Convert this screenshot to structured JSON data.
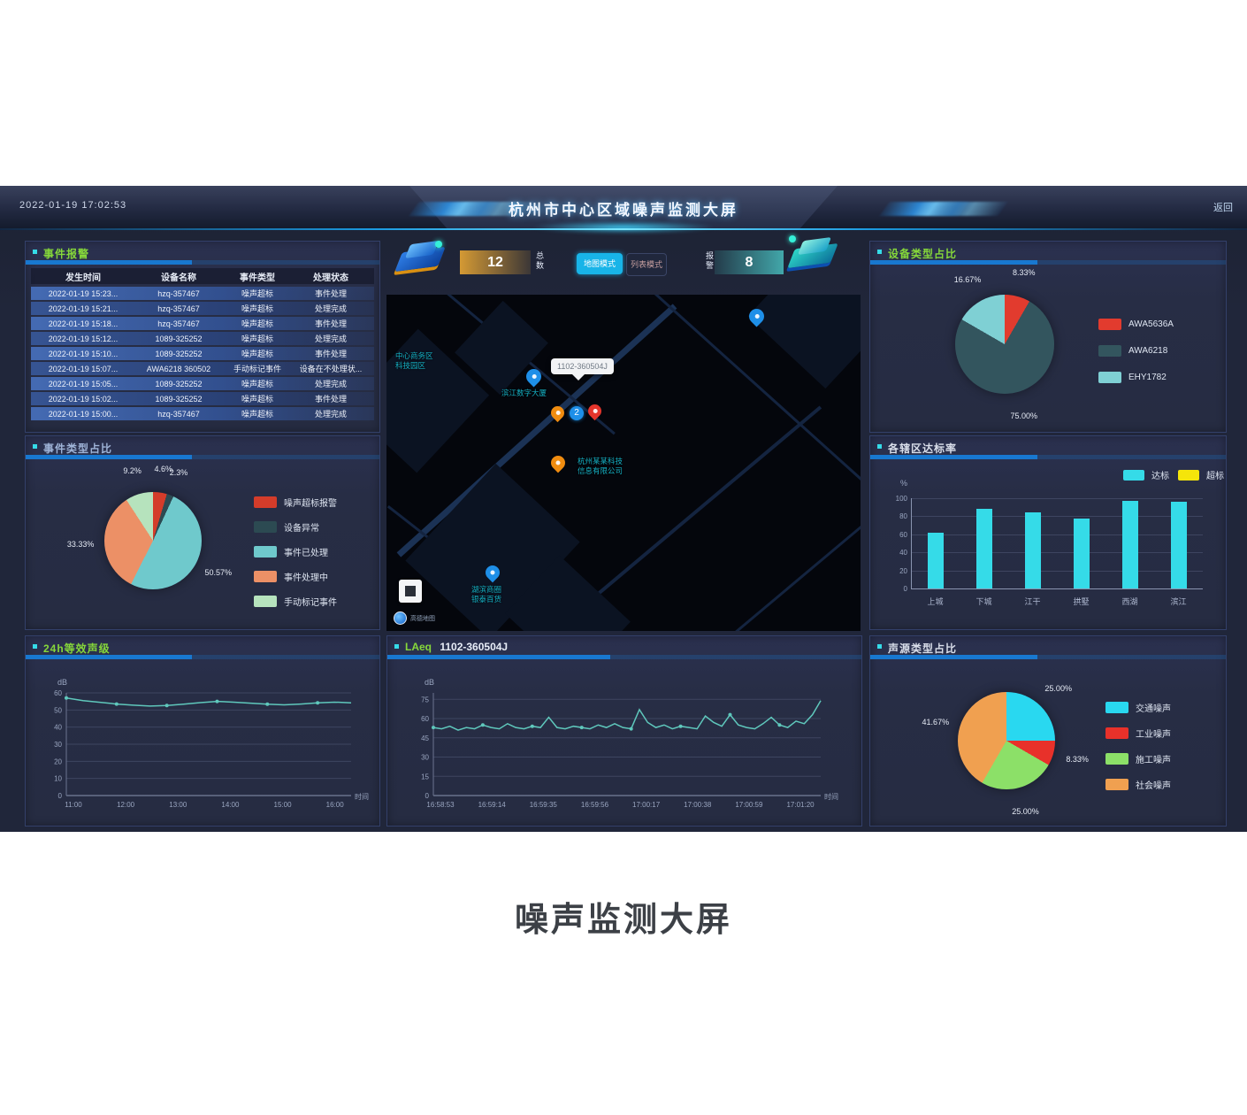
{
  "caption": "噪声监测大屏",
  "header": {
    "datetime": "2022-01-19 17:02:53",
    "title": "杭州市中心区域噪声监测大屏",
    "back_label": "返回"
  },
  "stats": {
    "device_total": {
      "label": "总数",
      "value": "12"
    },
    "alarm_count": {
      "label": "报警",
      "value": "8"
    },
    "buttons": [
      {
        "label": "地图模式",
        "active": true
      },
      {
        "label": "列表模式",
        "active": false
      }
    ]
  },
  "alarm_table": {
    "title": "事件报警",
    "columns": [
      "发生时间",
      "设备名称",
      "事件类型",
      "处理状态"
    ],
    "rows": [
      [
        "2022-01-19 15:23...",
        "hzq-357467",
        "噪声超标",
        "事件处理"
      ],
      [
        "2022-01-19 15:21...",
        "hzq-357467",
        "噪声超标",
        "处理完成"
      ],
      [
        "2022-01-19 15:18...",
        "hzq-357467",
        "噪声超标",
        "事件处理"
      ],
      [
        "2022-01-19 15:12...",
        "1089-325252",
        "噪声超标",
        "处理完成"
      ],
      [
        "2022-01-19 15:10...",
        "1089-325252",
        "噪声超标",
        "事件处理"
      ],
      [
        "2022-01-19 15:07...",
        "AWA6218 360502",
        "手动标记事件",
        "设备在不处理状..."
      ],
      [
        "2022-01-19 15:05...",
        "1089-325252",
        "噪声超标",
        "处理完成"
      ],
      [
        "2022-01-19 15:02...",
        "1089-325252",
        "噪声超标",
        "事件处理"
      ],
      [
        "2022-01-19 15:00...",
        "hzq-357467",
        "噪声超标",
        "处理完成"
      ]
    ]
  },
  "event_pie": {
    "title": "事件类型占比",
    "slices": [
      {
        "label": "噪声超标报警",
        "pct": "4.6%",
        "value": 4.6,
        "color": "#d43c2a"
      },
      {
        "label": "设备异常",
        "pct": "2.3%",
        "value": 2.3,
        "color": "#2c4a52"
      },
      {
        "label": "事件已处理",
        "pct": "50.57%",
        "value": 50.57,
        "color": "#6fc9cc"
      },
      {
        "label": "事件处理中",
        "pct": "33.33%",
        "value": 33.33,
        "color": "#ec9066"
      },
      {
        "label": "手动标记事件",
        "pct": "9.2%",
        "value": 9.2,
        "color": "#b6e3bd"
      }
    ]
  },
  "laeq_24h": {
    "title": "24h等效声级",
    "y_label": "dB",
    "x_label": "时间",
    "y_ticks": [
      0,
      10,
      20,
      30,
      40,
      50,
      60
    ],
    "y_max": 60,
    "x_ticks": [
      "11:00",
      "12:00",
      "13:00",
      "14:00",
      "15:00",
      "16:00"
    ],
    "values": [
      57,
      55.5,
      54.5,
      53.5,
      52.8,
      52.3,
      52.6,
      53.4,
      54.3,
      55,
      54.6,
      54,
      53.4,
      53,
      53.5,
      54.2,
      54.6,
      54.2
    ],
    "color": "#5fc8bc"
  },
  "device_pie": {
    "title": "设备类型占比",
    "slices": [
      {
        "label": "AWA5636A",
        "pct": "8.33%",
        "value": 8.33,
        "color": "#e23b2e"
      },
      {
        "label": "AWA6218",
        "pct": "75.00%",
        "value": 75.0,
        "color": "#33555e"
      },
      {
        "label": "EHY1782",
        "pct": "16.67%",
        "value": 16.67,
        "color": "#7fd0d4"
      }
    ]
  },
  "district_bars": {
    "title": "各辖区达标率",
    "y_label": "%",
    "legend": [
      {
        "label": "达标",
        "color": "#35dbe8"
      },
      {
        "label": "超标",
        "color": "#f5e50a"
      }
    ],
    "categories": [
      "上城",
      "下城",
      "江干",
      "拱墅",
      "西湖",
      "滨江"
    ],
    "values": [
      62,
      88,
      84,
      77,
      97,
      96
    ],
    "y_ticks": [
      0,
      20,
      40,
      60,
      80,
      100
    ],
    "y_max": 100,
    "bar_color": "#35dbe8"
  },
  "source_pie": {
    "title": "声源类型占比",
    "slices": [
      {
        "label": "交通噪声",
        "pct": "25.00%",
        "value": 25.0,
        "color": "#29d8f0"
      },
      {
        "label": "工业噪声",
        "pct": "8.33%",
        "value": 8.33,
        "color": "#e8312a"
      },
      {
        "label": "施工噪声",
        "pct": "25.00%",
        "value": 25.0,
        "color": "#8ce068"
      },
      {
        "label": "社会噪声",
        "pct": "41.67%",
        "value": 41.67,
        "color": "#f0a050"
      }
    ]
  },
  "laeq_realtime": {
    "title_prefix": "LAeq",
    "device_id": "1102-360504J",
    "y_label": "dB",
    "x_label": "时间",
    "y_ticks": [
      0,
      15,
      30,
      45,
      60,
      75
    ],
    "y_max": 80,
    "x_ticks": [
      "16:58:53",
      "16:59:14",
      "16:59:35",
      "16:59:56",
      "17:00:17",
      "17:00:38",
      "17:00:59",
      "17:01:20"
    ],
    "values": [
      53,
      52,
      54,
      51,
      53,
      52,
      55,
      53,
      52,
      56,
      53,
      52,
      54,
      53,
      61,
      53,
      52,
      54,
      53,
      52,
      55,
      53,
      56,
      53,
      52,
      67,
      57,
      53,
      55,
      52,
      54,
      53,
      52,
      62,
      57,
      54,
      63,
      55,
      53,
      52,
      56,
      61,
      55,
      53,
      58,
      56,
      63,
      74
    ],
    "color": "#5fc8bc"
  },
  "map": {
    "tooltip": "1102-360504J",
    "cluster_count": "2",
    "labels": [
      {
        "lines": [
          "中心商务区",
          "科技园区"
        ]
      },
      {
        "lines": [
          "滨江数字大厦"
        ]
      },
      {
        "lines": [
          "杭州某某科技",
          "信息有限公司"
        ]
      },
      {
        "lines": [
          "湖滨商圈",
          "银泰百货"
        ]
      }
    ],
    "attribution": "高德地图"
  },
  "colors": {
    "accent_cyan": "#35dbe8",
    "underline_blue": "#1878d0",
    "title_green": "#86d83a",
    "pin_blue": "#1e8fe8",
    "pin_orange": "#f08c10",
    "pin_red": "#e5352c"
  }
}
